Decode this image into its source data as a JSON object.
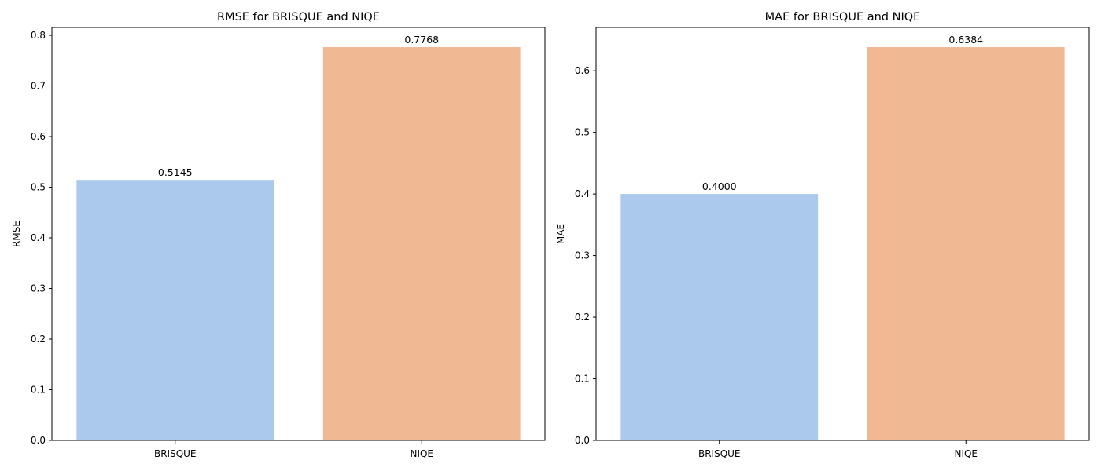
{
  "chart_data": [
    {
      "type": "bar",
      "title": "RMSE for BRISQUE and NIQE",
      "xlabel": "",
      "ylabel": "RMSE",
      "categories": [
        "BRISQUE",
        "NIQE"
      ],
      "values": [
        0.5145,
        0.7768
      ],
      "data_labels": [
        "0.5145",
        "0.7768"
      ],
      "colors": [
        "#abc9ec",
        "#f0b893"
      ],
      "ylim": [
        0,
        0.8156
      ],
      "yticks": [
        0.0,
        0.1,
        0.2,
        0.3,
        0.4,
        0.5,
        0.6,
        0.7,
        0.8
      ],
      "ytick_labels": [
        "0.0",
        "0.1",
        "0.2",
        "0.3",
        "0.4",
        "0.5",
        "0.6",
        "0.7",
        "0.8"
      ],
      "grid": false
    },
    {
      "type": "bar",
      "title": "MAE for BRISQUE and NIQE",
      "xlabel": "",
      "ylabel": "MAE",
      "categories": [
        "BRISQUE",
        "NIQE"
      ],
      "values": [
        0.4,
        0.6384
      ],
      "data_labels": [
        "0.4000",
        "0.6384"
      ],
      "colors": [
        "#abc9ec",
        "#f0b893"
      ],
      "ylim": [
        0,
        0.6703
      ],
      "yticks": [
        0.0,
        0.1,
        0.2,
        0.3,
        0.4,
        0.5,
        0.6
      ],
      "ytick_labels": [
        "0.0",
        "0.1",
        "0.2",
        "0.3",
        "0.4",
        "0.5",
        "0.6"
      ],
      "grid": false
    }
  ]
}
